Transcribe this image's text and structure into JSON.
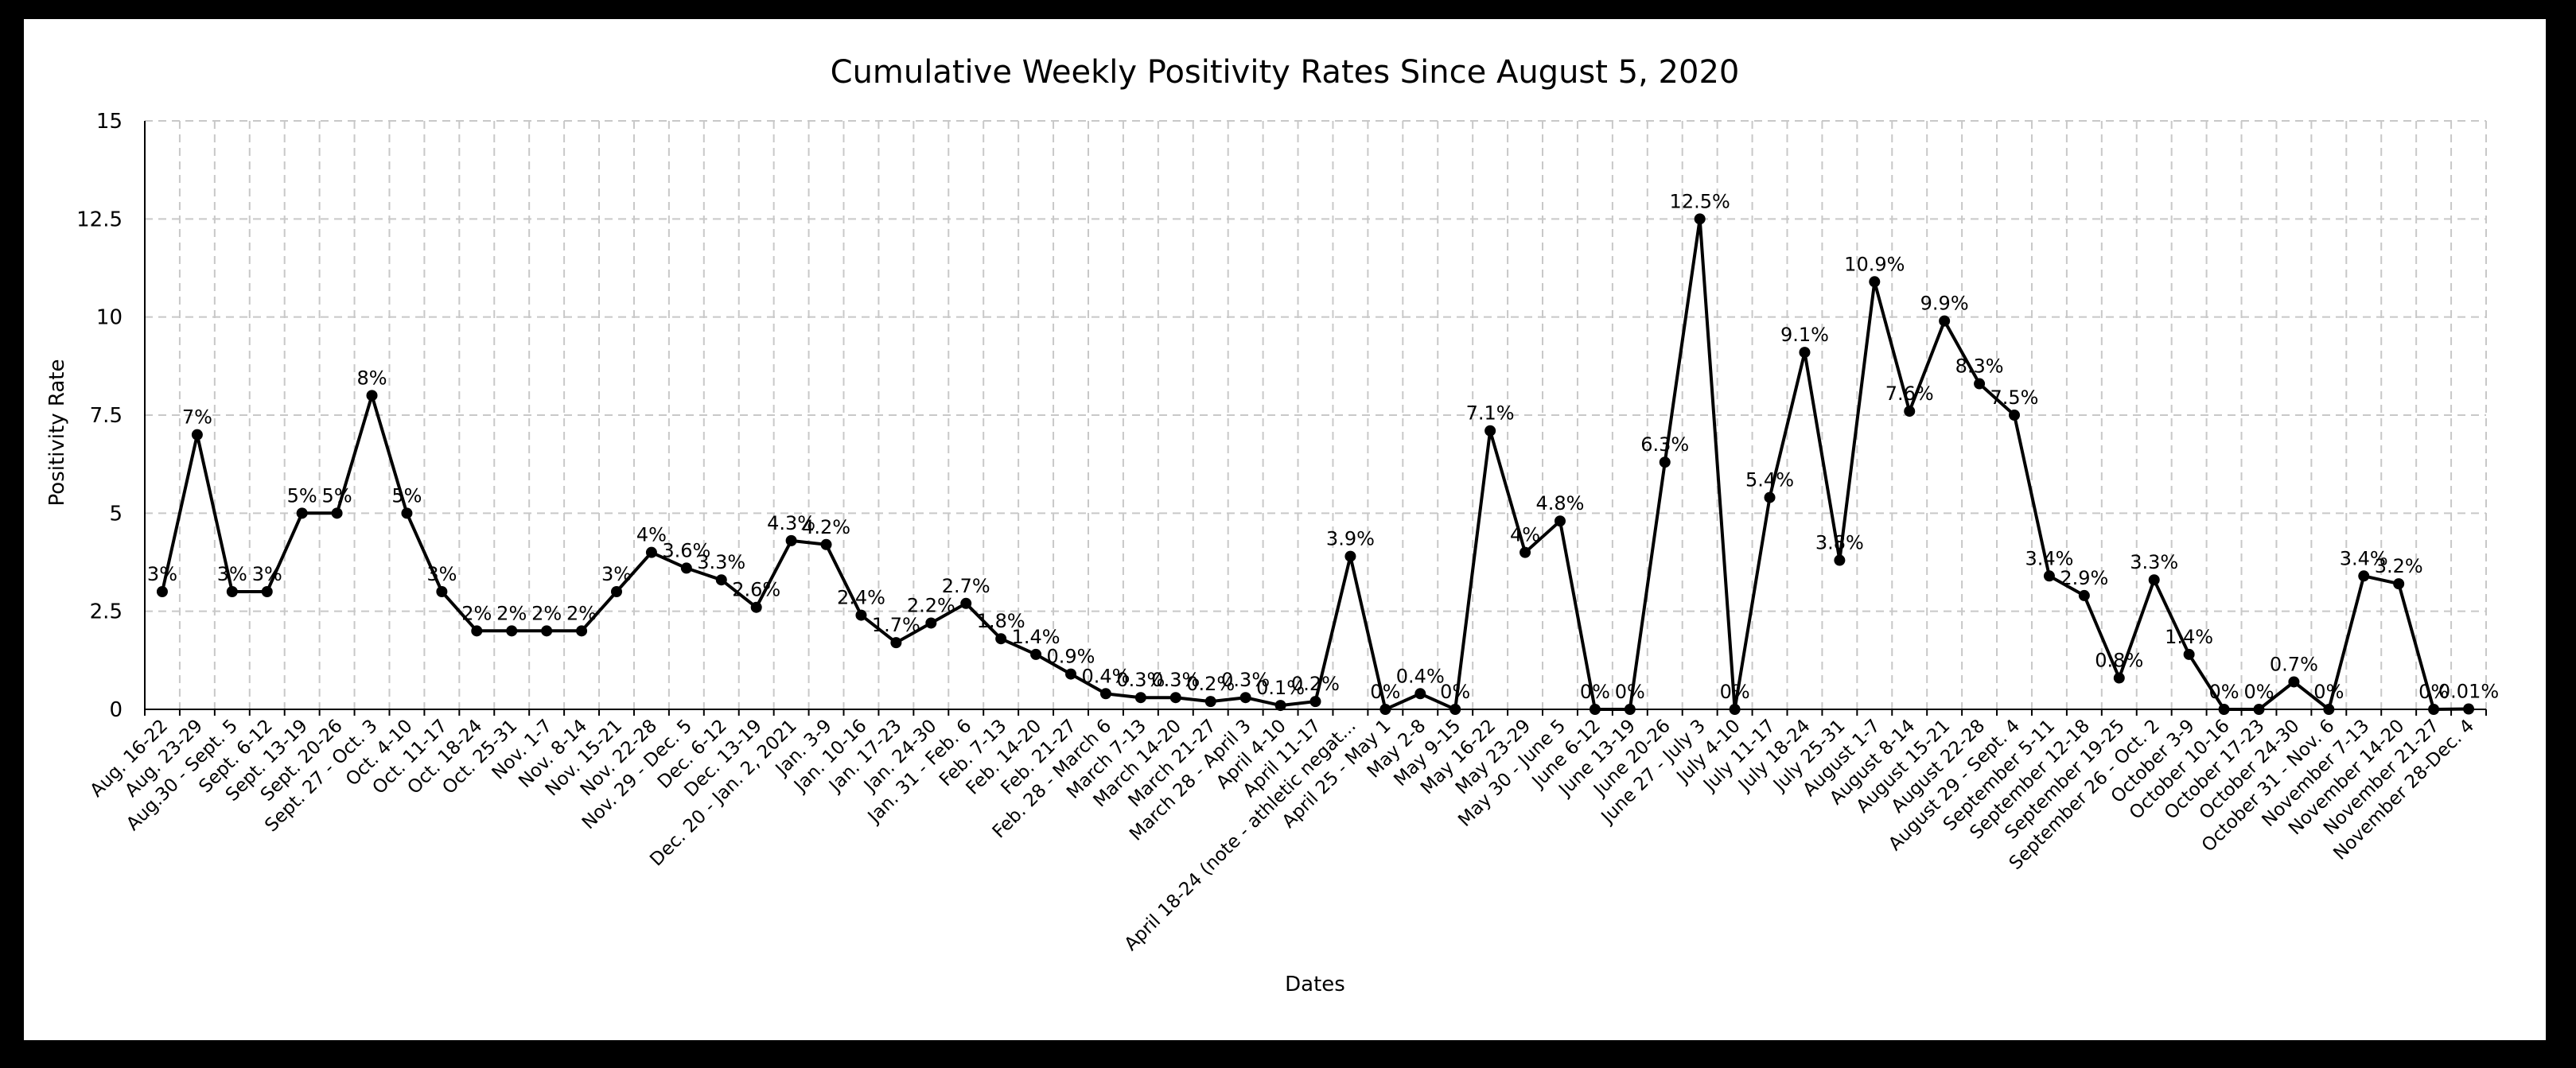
{
  "chart_data": {
    "type": "line",
    "title": "Cumulative Weekly Positivity Rates Since August 5, 2020",
    "xlabel": "Dates",
    "ylabel": "Positivity Rate",
    "ylim": [
      0,
      15
    ],
    "yticks": [
      "0",
      "2.5",
      "5",
      "7.5",
      "10",
      "12.5",
      "15"
    ],
    "grid": true,
    "legend": "none",
    "categories": [
      "Aug. 16-22",
      "Aug. 23-29",
      "Aug.30 - Sept. 5",
      "Sept. 6-12",
      "Sept. 13-19",
      "Sept. 20-26",
      "Sept. 27 - Oct. 3",
      "Oct. 4-10",
      "Oct. 11-17",
      "Oct. 18-24",
      "Oct. 25-31",
      "Nov. 1-7",
      "Nov. 8-14",
      "Nov. 15-21",
      "Nov. 22-28",
      "Nov. 29 - Dec. 5",
      "Dec. 6-12",
      "Dec. 13-19",
      "Dec. 20 - Jan. 2, 2021",
      "Jan. 3-9",
      "Jan. 10-16",
      "Jan. 17-23",
      "Jan. 24-30",
      "Jan. 31 - Feb. 6",
      "Feb. 7-13",
      "Feb. 14-20",
      "Feb. 21-27",
      "Feb. 28 - March 6",
      "March 7-13",
      "March 14-20",
      "March 21-27",
      "March 28 - April 3",
      "April 4-10",
      "April 11-17",
      "April 18-24 (note - athletic negat...",
      "April 25 - May 1",
      "May 2-8",
      "May 9-15",
      "May 16-22",
      "May 23-29",
      "May 30 - June 5",
      "June 6-12",
      "June 13-19",
      "June 20-26",
      "June 27 - July 3",
      "July 4-10",
      "July 11-17",
      "July 18-24",
      "July 25-31",
      "August 1-7",
      "August 8-14",
      "August 15-21",
      "August 22-28",
      "August 29 - Sept. 4",
      "September 5-11",
      "September 12-18",
      "September 19-25",
      "September 26 - Oct. 2",
      "October 3-9",
      "October 10-16",
      "October 17-23",
      "October 24-30",
      "October 31 - Nov. 6",
      "November 7-13",
      "November 14-20",
      "November 21-27",
      "November 28-Dec. 4"
    ],
    "series": [
      {
        "values": [
          3,
          7,
          3,
          3,
          5,
          5,
          8,
          5,
          3,
          2,
          2,
          2,
          2,
          3,
          4,
          3.6,
          3.3,
          2.6,
          4.3,
          4.2,
          2.4,
          1.7,
          2.2,
          2.7,
          1.8,
          1.4,
          0.9,
          0.4,
          0.3,
          0.3,
          0.2,
          0.3,
          0.1,
          0.2,
          3.9,
          0,
          0.4,
          0,
          7.1,
          4,
          4.8,
          0,
          0,
          6.3,
          12.5,
          0,
          5.4,
          9.1,
          3.8,
          10.9,
          7.6,
          9.9,
          8.3,
          7.5,
          3.4,
          2.9,
          0.8,
          3.3,
          1.4,
          0,
          0,
          0.7,
          0,
          3.4,
          3.2,
          0,
          0.01
        ],
        "data_labels": [
          "3%",
          "7%",
          "3%",
          "3%",
          "5%",
          "5%",
          "8%",
          "5%",
          "3%",
          "2%",
          "2%",
          "2%",
          "2%",
          "3%",
          "4%",
          "3.6%",
          "3.3%",
          "2.6%",
          "4.3%",
          "4.2%",
          "2.4%",
          "1.7%",
          "2.2%",
          "2.7%",
          "1.8%",
          "1.4%",
          "0.9%",
          "0.4%",
          "0.3%",
          "0.3%",
          "0.2%",
          "0.3%",
          "0.1%",
          "0.2%",
          "3.9%",
          "0%",
          "0.4%",
          "0%",
          "7.1%",
          "4%",
          "4.8%",
          "0%",
          "0%",
          "6.3%",
          "12.5%",
          "0%",
          "5.4%",
          "9.1%",
          "3.8%",
          "10.9%",
          "7.6%",
          "9.9%",
          "8.3%",
          "7.5%",
          "3.4%",
          "2.9%",
          "0.8%",
          "3.3%",
          "1.4%",
          "0%",
          "0%",
          "0.7%",
          "0%",
          "3.4%",
          "3.2%",
          "0%",
          "0.01%"
        ]
      }
    ]
  }
}
